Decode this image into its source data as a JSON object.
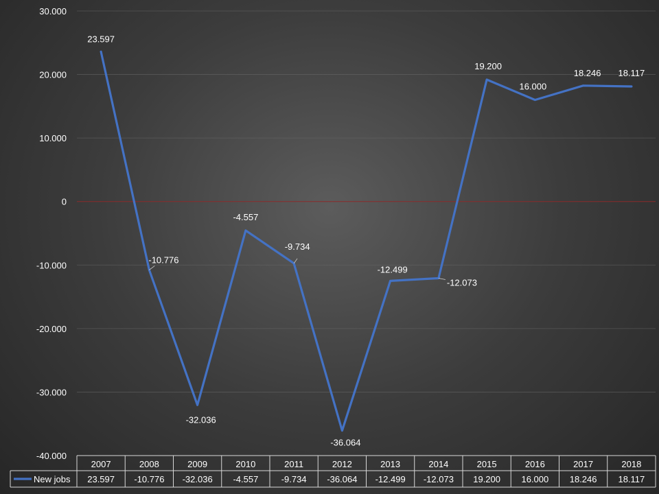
{
  "chart_data": {
    "type": "line",
    "title": "",
    "xlabel": "",
    "ylabel": "",
    "categories": [
      "2007",
      "2008",
      "2009",
      "2010",
      "2011",
      "2012",
      "2013",
      "2014",
      "2015",
      "2016",
      "2017",
      "2018"
    ],
    "series": [
      {
        "name": "New jobs",
        "values": [
          23.597,
          -10.776,
          -32.036,
          -4.557,
          -9.734,
          -36.064,
          -12.499,
          -12.073,
          19.2,
          16.0,
          18.246,
          18.117
        ],
        "labels": [
          "23.597",
          "-10.776",
          "-32.036",
          "-4.557",
          "-9.734",
          "-36.064",
          "-12.499",
          "-12.073",
          "19.200",
          "16.000",
          "18.246",
          "18.117"
        ],
        "color": "#4472c4"
      }
    ],
    "ylim": [
      -40,
      30
    ],
    "y_ticks": [
      30,
      20,
      10,
      0,
      -10,
      -20,
      -30,
      -40
    ],
    "y_tick_labels": [
      "30.000",
      "20.000",
      "10.000",
      "0",
      "-10.000",
      "-20.000",
      "-30.000",
      "-40.000"
    ],
    "grid": true,
    "zero_line_color": "#8b2a2a",
    "data_table": true,
    "legend": "in data table"
  }
}
